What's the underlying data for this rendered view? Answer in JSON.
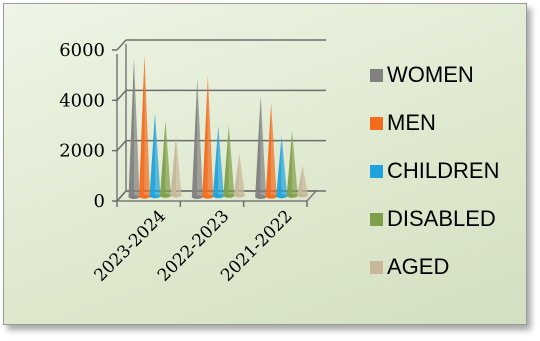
{
  "chart_data": {
    "type": "bar",
    "style": "3d-cone",
    "categories": [
      "2023-2024",
      "2022-2023",
      "2021-2022"
    ],
    "series": [
      {
        "name": "WOMEN",
        "color": "#808080",
        "values": [
          5500,
          4700,
          4000
        ]
      },
      {
        "name": "MEN",
        "color": "#f26b1d",
        "values": [
          5600,
          4800,
          3700
        ]
      },
      {
        "name": "CHILDREN",
        "color": "#1fa3dc",
        "values": [
          3300,
          2800,
          2400
        ]
      },
      {
        "name": "DISABLED",
        "color": "#7fa04a",
        "values": [
          3000,
          2800,
          2600
        ]
      },
      {
        "name": "AGED",
        "color": "#c8b79a",
        "values": [
          2400,
          1700,
          1200
        ]
      }
    ],
    "y_ticks": [
      "0",
      "2000",
      "4000",
      "6000"
    ],
    "ylim": [
      0,
      6000
    ],
    "grid": true,
    "legend_position": "right"
  }
}
